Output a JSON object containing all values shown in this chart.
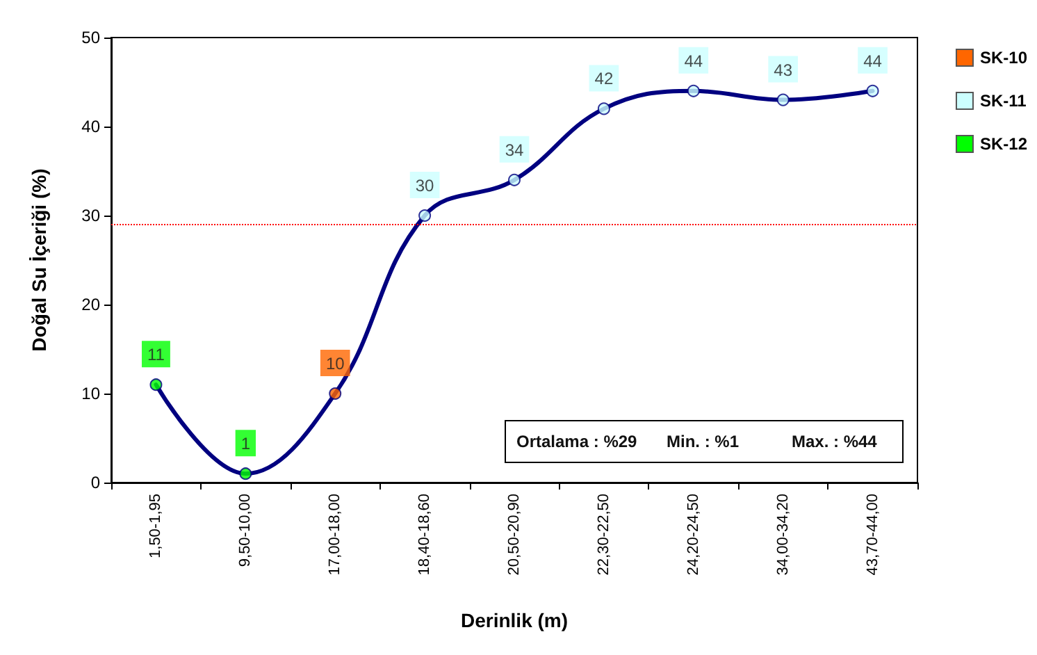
{
  "chart_data": {
    "type": "line",
    "xlabel": "Derinlik (m)",
    "ylabel": "Doğal Su İçeriği (%)",
    "categories": [
      "1,50-1,95",
      "9,50-10,00",
      "17,00-18,00",
      "18,40-18,60",
      "20,50-20,90",
      "22,30-22,50",
      "24,20-24,50",
      "34,00-34,20",
      "43,70-44,00"
    ],
    "series": [
      {
        "color": "#000080",
        "values": [
          11,
          1,
          10,
          30,
          34,
          42,
          44,
          43,
          44
        ],
        "marker": "none"
      },
      {
        "type": "scatter",
        "name": "SK-10",
        "color": "#ff6600",
        "values": [
          null,
          null,
          10,
          null,
          null,
          null,
          null,
          null,
          null
        ],
        "value_labels": [
          null,
          null,
          "10",
          null,
          null,
          null,
          null,
          null,
          null
        ],
        "marker": "circle"
      },
      {
        "type": "scatter",
        "name": "SK-11",
        "color": "#ccffff",
        "values": [
          null,
          null,
          null,
          30,
          34,
          42,
          44,
          43,
          44
        ],
        "value_labels": [
          null,
          null,
          null,
          "30",
          "34",
          "42",
          "44",
          "43",
          "44"
        ],
        "marker": "circle"
      },
      {
        "type": "scatter",
        "name": "SK-12",
        "color": "#00ff00",
        "values": [
          11,
          1,
          null,
          null,
          null,
          null,
          null,
          null,
          null
        ],
        "value_labels": [
          "11",
          "1",
          null,
          null,
          null,
          null,
          null,
          null,
          null
        ],
        "marker": "circle"
      }
    ],
    "ylim": [
      0,
      50
    ],
    "yticks": [
      0,
      10,
      20,
      30,
      40,
      50
    ],
    "grid": false,
    "legend": "right",
    "line_style": "solid",
    "ref_lines": [
      {
        "axis": "y",
        "value": 29,
        "color": "#ff0000",
        "line_style": "dotted"
      }
    ],
    "annotations": [
      "Ortalama : %29",
      "Min. : %1",
      "Max. : %44"
    ]
  }
}
